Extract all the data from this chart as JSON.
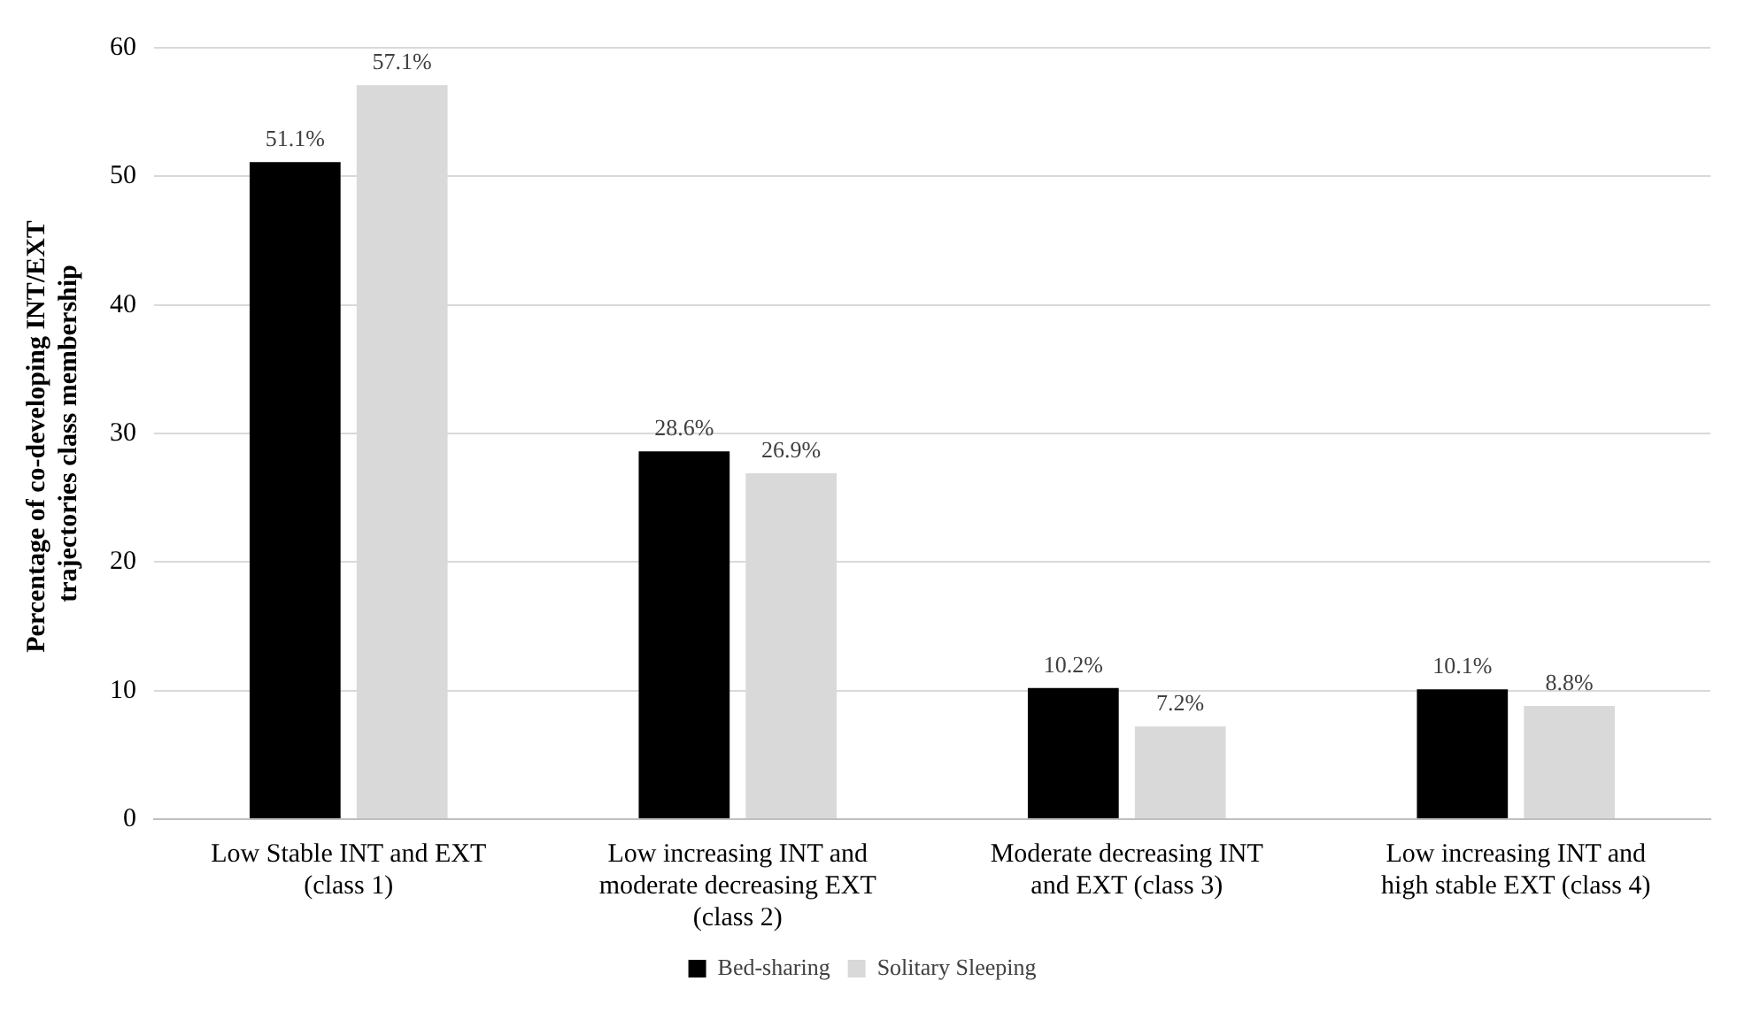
{
  "chart_data": {
    "type": "bar",
    "ylabel": "Percentage of co-developing INT/EXT  trajectories class membership",
    "categories": [
      "Low Stable INT and EXT (class 1)",
      "Low increasing INT and moderate decreasing EXT (class 2)",
      "Moderate decreasing INT and EXT (class 3)",
      "Low increasing INT and high stable EXT (class 4)"
    ],
    "series": [
      {
        "name": "Bed-sharing",
        "color": "#000000",
        "values": [
          51.1,
          28.6,
          10.2,
          10.1
        ],
        "value_labels": [
          "51.1%",
          "28.6%",
          "10.2%",
          "10.1%"
        ]
      },
      {
        "name": "Solitary Sleeping",
        "color": "#d9d9d9",
        "values": [
          57.1,
          26.9,
          7.2,
          8.8
        ],
        "value_labels": [
          "57.1%",
          "26.9%",
          "7.2%",
          "8.8%"
        ]
      }
    ],
    "ylim": [
      0,
      60
    ],
    "yticks": [
      0,
      10,
      20,
      30,
      40,
      50,
      60
    ],
    "grid": "y",
    "legend": "bottom"
  }
}
